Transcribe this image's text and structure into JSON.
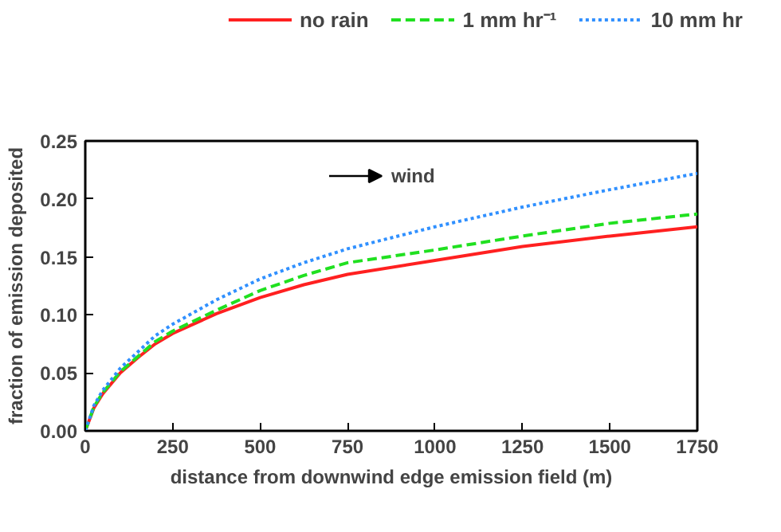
{
  "chart_data": {
    "type": "line",
    "xlabel": "distance from downwind edge emission field (m)",
    "ylabel": "fraction of emission deposited",
    "annotations": [
      "wind"
    ],
    "x": [
      0,
      25,
      50,
      100,
      150,
      200,
      250,
      375,
      500,
      625,
      750,
      1000,
      1250,
      1500,
      1750
    ],
    "series": [
      {
        "name": "no rain",
        "color": "#ff2020",
        "line_style": "solid",
        "values": [
          0.0,
          0.02,
          0.032,
          0.05,
          0.063,
          0.075,
          0.084,
          0.101,
          0.115,
          0.126,
          0.135,
          0.147,
          0.159,
          0.168,
          0.176
        ]
      },
      {
        "name": "1 mm hr⁻¹",
        "color": "#20e020",
        "line_style": "dashed",
        "values": [
          0.0,
          0.021,
          0.033,
          0.051,
          0.064,
          0.077,
          0.086,
          0.104,
          0.121,
          0.134,
          0.145,
          0.156,
          0.168,
          0.179,
          0.187
        ]
      },
      {
        "name": "10 mm hr",
        "color": "#3090ff",
        "line_style": "dotted",
        "values": [
          0.0,
          0.022,
          0.035,
          0.054,
          0.068,
          0.082,
          0.092,
          0.113,
          0.131,
          0.145,
          0.157,
          0.176,
          0.193,
          0.208,
          0.222
        ]
      }
    ],
    "xlim": [
      0,
      1750
    ],
    "ylim": [
      0,
      0.25
    ],
    "xticks": [
      0,
      250,
      500,
      750,
      1000,
      1250,
      1500,
      1750
    ],
    "yticks": [
      {
        "value": 0,
        "label": "0.00"
      },
      {
        "value": 0.05,
        "label": "0.05"
      },
      {
        "value": 0.1,
        "label": "0.10"
      },
      {
        "value": 0.15,
        "label": "0.15"
      },
      {
        "value": 0.2,
        "label": "0.20"
      },
      {
        "value": 0.25,
        "label": "0.25"
      }
    ],
    "grid": false,
    "legend": "top",
    "marker": "none"
  }
}
